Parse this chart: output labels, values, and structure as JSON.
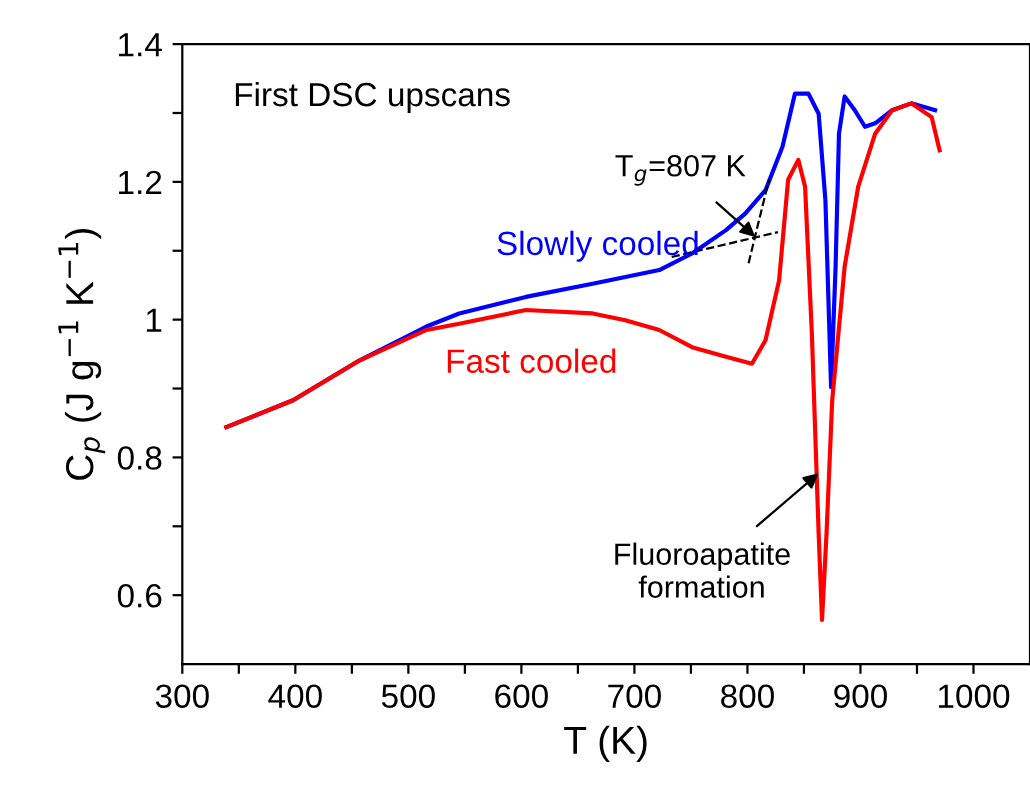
{
  "chart_data": {
    "type": "line",
    "title": "First DSC upscans",
    "xlabel": "T (K)",
    "ylabel": "C$_{p}$ (J g$^{−1}$ K$^{−1}$)",
    "xlim": [
      300,
      1050
    ],
    "xticks": [
      300,
      {
        "value": 350,
        "label": null
      },
      400,
      {
        "value": 450,
        "label": null
      },
      500,
      {
        "value": 550,
        "label": null
      },
      600,
      {
        "value": 650,
        "label": null
      },
      700,
      {
        "value": 750,
        "label": null
      },
      800,
      {
        "value": 850,
        "label": null
      },
      900,
      {
        "value": 950,
        "label": null
      },
      1000
    ],
    "ylim": [
      0.5,
      1.4
    ],
    "yticks": [
      0.6,
      {
        "value": 0.7,
        "label": null
      },
      0.8,
      {
        "value": 0.9,
        "label": null
      },
      1,
      {
        "value": 1.1,
        "label": null
      },
      1.2,
      {
        "value": 1.3,
        "label": null
      },
      1.4
    ],
    "grid": false,
    "legend": false,
    "marker": "none",
    "line_style": "solid",
    "series": [
      {
        "name": "Slowly cooled",
        "color": "#0000ff",
        "x": [
          339,
          398,
          457,
          516,
          545,
          604,
          663,
          692,
          722,
          751,
          781,
          798,
          816,
          831,
          842,
          854,
          863,
          869,
          874,
          878,
          881,
          886,
          895,
          904,
          913,
          928,
          945,
          966
        ],
        "values": [
          0.844,
          0.883,
          0.941,
          0.99,
          1.009,
          1.033,
          1.052,
          1.062,
          1.072,
          1.096,
          1.13,
          1.154,
          1.188,
          1.251,
          1.328,
          1.328,
          1.299,
          1.173,
          0.902,
          1.077,
          1.27,
          1.324,
          1.304,
          1.28,
          1.285,
          1.304,
          1.314,
          1.304
        ]
      },
      {
        "name": "Fast cooled",
        "color": "#ff0000",
        "x": [
          339,
          398,
          457,
          516,
          545,
          604,
          663,
          692,
          722,
          751,
          781,
          804,
          816,
          828,
          836,
          845,
          851,
          857,
          863,
          866,
          870,
          875,
          886,
          898,
          913,
          928,
          945,
          963,
          970
        ],
        "values": [
          0.844,
          0.883,
          0.941,
          0.985,
          0.994,
          1.014,
          1.009,
          0.999,
          0.985,
          0.96,
          0.946,
          0.936,
          0.97,
          1.057,
          1.203,
          1.232,
          1.193,
          0.98,
          0.69,
          0.564,
          0.69,
          0.883,
          1.077,
          1.193,
          1.27,
          1.304,
          1.314,
          1.294,
          1.246
        ]
      },
      {
        "type": "line",
        "color": "#000000",
        "line_style": "dashed",
        "x": [
          733,
          827
        ],
        "values": [
          1.091,
          1.127
        ]
      },
      {
        "type": "line",
        "color": "#000000",
        "line_style": "dashed",
        "x": [
          801,
          819
        ],
        "values": [
          1.082,
          1.203
        ]
      }
    ],
    "annotations": [
      {
        "text": "T$_{g}$=807 K",
        "x": 807,
        "y": 1.12
      },
      {
        "text": "Fluoroapatite\nformation",
        "x": 863,
        "y": 0.777
      }
    ]
  }
}
